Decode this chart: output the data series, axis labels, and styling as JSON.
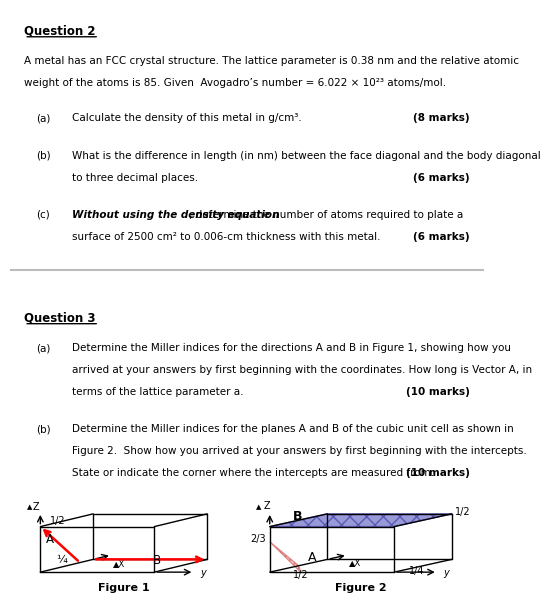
{
  "title_q2": "Question 2",
  "title_q3": "Question 3",
  "q2_intro_1": "A metal has an FCC crystal structure. The lattice parameter is 0.38 nm and the relative atomic",
  "q2_intro_2": "weight of the atoms is 85. Given  Avogadro’s number = 6.022 × 10²³ atoms/mol.",
  "q2a_label": "(a)",
  "q2a_text": "Calculate the density of this metal in g/cm³.",
  "q2a_marks": "(8 marks)",
  "q2b_label": "(b)",
  "q2b_line1": "What is the difference in length (in nm) between the face diagonal and the body diagonal",
  "q2b_line2": "to three decimal places.",
  "q2b_marks": "(6 marks)",
  "q2c_label": "(c)",
  "q2c_bold": "Without using the density equation",
  "q2c_rest1": ", determine the number of atoms required to plate a",
  "q2c_line2": "surface of 2500 cm² to 0.006-cm thickness with this metal.",
  "q2c_marks": "(6 marks)",
  "q3a_label": "(a)",
  "q3a_line1": "Determine the Miller indices for the directions A and B in Figure 1, showing how you",
  "q3a_line2": "arrived at your answers by first beginning with the coordinates. How long is Vector A, in",
  "q3a_line3": "terms of the lattice parameter a.",
  "q3a_marks": "(10 marks)",
  "q3b_label": "(b)",
  "q3b_line1": "Determine the Miller indices for the planes A and B of the cubic unit cell as shown in",
  "q3b_line2": "Figure 2.  Show how you arrived at your answers by first beginning with the intercepts.",
  "q3b_line3": "State or indicate the corner where the intercepts are measured from.",
  "q3b_marks": "(10 marks)",
  "fig1_caption": "Figure 1",
  "fig2_caption": "Figure 2",
  "bg_color": "#ffffff",
  "text_color": "#000000",
  "separator_color": "#bbbbbb"
}
